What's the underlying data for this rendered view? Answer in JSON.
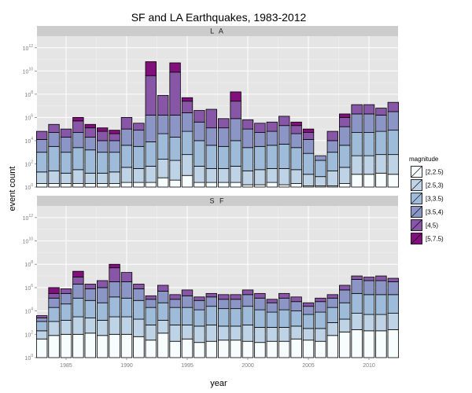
{
  "chart_data": {
    "type": "bar",
    "stacked": true,
    "log_scale_y": true,
    "title": "SF and LA Earthquakes, 1983-2012",
    "xlabel": "year",
    "ylabel": "event count",
    "x_range": [
      1982.6,
      2012.4
    ],
    "x_ticks": [
      1985,
      1990,
      1995,
      2000,
      2005,
      2010
    ],
    "y_range_log10": [
      0,
      13
    ],
    "y_ticks_exponents": [
      0,
      2,
      4,
      6,
      8,
      10,
      12
    ],
    "legend_title": "magnitude",
    "legend_position": "right",
    "grid": true,
    "years": [
      1983,
      1984,
      1985,
      1986,
      1987,
      1988,
      1989,
      1990,
      1991,
      1992,
      1993,
      1994,
      1995,
      1996,
      1997,
      1998,
      1999,
      2000,
      2001,
      2002,
      2003,
      2004,
      2005,
      2006,
      2007,
      2008,
      2009,
      2010,
      2011,
      2012
    ],
    "magnitude_bins": [
      "[2,2.5)",
      "[2.5,3)",
      "[3,3.5)",
      "[3.5,4)",
      "[4,5)",
      "[5,7.5)"
    ],
    "colors": [
      "#f7fcfd",
      "#bfd3e6",
      "#9ebcda",
      "#8c96c6",
      "#8856a7",
      "#810f7c"
    ],
    "panels": [
      {
        "strip": "L A",
        "series": [
          {
            "name": "[2,2.5)",
            "values": [
              0.3,
              0.3,
              0.3,
              0.3,
              0.3,
              0.3,
              0.3,
              0.4,
              0.4,
              0.4,
              0.8,
              0.6,
              1.0,
              0.4,
              0.4,
              0.4,
              0.4,
              0.2,
              0.2,
              0.4,
              0.2,
              0.3,
              0.1,
              0.1,
              0.1,
              0.3,
              1.1,
              1.1,
              1.2,
              1.1
            ]
          },
          {
            "name": "[2.5,3)",
            "values": [
              1.0,
              1.1,
              0.9,
              1.2,
              0.9,
              0.9,
              1.0,
              1.3,
              1.2,
              1.4,
              1.6,
              1.7,
              1.8,
              1.4,
              1.2,
              1.2,
              1.4,
              1.2,
              1.3,
              1.2,
              1.4,
              1.2,
              1.0,
              0.8,
              1.3,
              1.4,
              1.6,
              1.6,
              1.6,
              1.7
            ]
          },
          {
            "name": "[3,3.5)",
            "values": [
              1.7,
              2.1,
              1.8,
              1.9,
              2.0,
              1.8,
              1.7,
              1.9,
              1.9,
              2.1,
              2.2,
              2.0,
              2.0,
              2.2,
              2.0,
              1.9,
              2.2,
              2.0,
              2.0,
              2.0,
              2.1,
              1.9,
              1.8,
              1.4,
              1.6,
              1.9,
              2.0,
              2.0,
              2.0,
              2.1
            ]
          },
          {
            "name": "[3.5,4)",
            "values": [
              1.1,
              1.2,
              1.3,
              1.3,
              1.1,
              1.0,
              1.0,
              1.4,
              1.4,
              2.3,
              1.6,
              1.9,
              1.6,
              1.6,
              1.5,
              1.6,
              1.9,
              1.6,
              1.2,
              1.2,
              1.6,
              1.2,
              1.2,
              0.4,
              1.0,
              1.6,
              1.6,
              1.6,
              1.4,
              1.6
            ]
          },
          {
            "name": "[4,5)",
            "values": [
              0.7,
              0.7,
              0.7,
              1.0,
              0.8,
              0.8,
              0.6,
              1.0,
              0.6,
              3.4,
              1.7,
              3.7,
              1.0,
              1.0,
              1.6,
              0.8,
              1.5,
              0.8,
              0.8,
              0.8,
              0.8,
              0.7,
              0.6,
              0.0,
              0.8,
              0.8,
              0.8,
              0.8,
              0.6,
              0.8
            ]
          },
          {
            "name": "[5,7.5)",
            "values": [
              0,
              0,
              0,
              0.3,
              0.3,
              0.3,
              0.3,
              0,
              0,
              1.2,
              0,
              0.8,
              0.3,
              0,
              0,
              0,
              0.8,
              0,
              0,
              0,
              0,
              0.3,
              0.3,
              0,
              0,
              0.3,
              0,
              0,
              0,
              0
            ]
          }
        ]
      },
      {
        "strip": "S F",
        "series": [
          {
            "name": "[2,2.5)",
            "values": [
              1.6,
              1.9,
              2.0,
              2.0,
              2.1,
              1.9,
              2.0,
              2.0,
              1.8,
              1.5,
              2.1,
              1.4,
              1.6,
              1.3,
              1.4,
              1.5,
              1.5,
              1.4,
              1.3,
              1.4,
              1.4,
              1.6,
              1.5,
              1.4,
              1.9,
              2.2,
              2.4,
              2.3,
              2.3,
              2.4
            ]
          },
          {
            "name": "[2.5,3)",
            "values": [
              0.7,
              1.2,
              1.2,
              1.5,
              1.3,
              1.3,
              1.5,
              1.5,
              1.5,
              1.3,
              1.1,
              1.4,
              1.2,
              1.4,
              1.4,
              1.2,
              1.2,
              1.4,
              1.3,
              1.2,
              1.2,
              1.1,
              1.0,
              1.1,
              1.1,
              1.1,
              1.4,
              1.4,
              1.4,
              1.4
            ]
          },
          {
            "name": "[3,3.5)",
            "values": [
              0.8,
              1.2,
              1.4,
              1.6,
              1.5,
              1.5,
              1.7,
              1.6,
              1.6,
              1.5,
              1.5,
              1.5,
              1.5,
              1.4,
              1.6,
              1.5,
              1.5,
              1.6,
              1.5,
              1.3,
              1.5,
              1.3,
              1.2,
              1.4,
              1.3,
              1.4,
              1.7,
              1.7,
              1.7,
              1.6
            ]
          },
          {
            "name": "[3.5,4)",
            "values": [
              0.3,
              0.8,
              0.9,
              1.2,
              1.0,
              1.3,
              1.3,
              1.4,
              1.0,
              0.7,
              1.0,
              0.7,
              1.0,
              0.8,
              0.8,
              0.8,
              0.8,
              1.0,
              1.0,
              0.8,
              1.0,
              0.8,
              0.7,
              0.9,
              0.8,
              1.1,
              1.2,
              1.2,
              1.2,
              1.1
            ]
          },
          {
            "name": "[4,5)",
            "values": [
              0.2,
              0.4,
              0.4,
              0.6,
              0.4,
              0.6,
              1.2,
              0.8,
              0.4,
              0.3,
              0.5,
              0.4,
              0.5,
              0.3,
              0.3,
              0.4,
              0.4,
              0.4,
              0.4,
              0.3,
              0.4,
              0.4,
              0.3,
              0.3,
              0.3,
              0.4,
              0.3,
              0.3,
              0.4,
              0.3
            ]
          },
          {
            "name": "[5,7.5)",
            "values": [
              0,
              0.5,
              0,
              0.5,
              0,
              0,
              0.3,
              0,
              0,
              0,
              0,
              0,
              0,
              0,
              0,
              0,
              0,
              0,
              0,
              0,
              0,
              0,
              0,
              0,
              0,
              0,
              0,
              0,
              0,
              0
            ]
          }
        ]
      }
    ]
  }
}
